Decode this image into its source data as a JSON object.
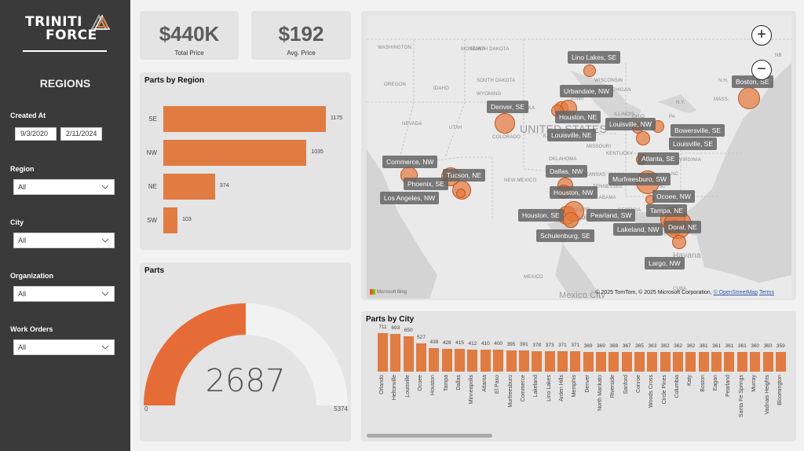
{
  "brand": {
    "line1": "TRINITI",
    "line2": "FORCE"
  },
  "sidebar": {
    "title": "REGIONS",
    "created_at": {
      "label": "Created At",
      "start": "9/3/2020",
      "end": "2/11/2024"
    },
    "filters": [
      {
        "label": "Region",
        "value": "All"
      },
      {
        "label": "City",
        "value": "All"
      },
      {
        "label": "Organization",
        "value": "All"
      },
      {
        "label": "Work Orders",
        "value": "All"
      }
    ]
  },
  "kpis": [
    {
      "value": "$440K",
      "label": "Total Price"
    },
    {
      "value": "$192",
      "label": "Avg. Price"
    }
  ],
  "accent_color": "#e07b42",
  "parts_by_region": {
    "title": "Parts by Region",
    "chart_data": {
      "type": "bar",
      "orientation": "horizontal",
      "title": "Parts by Region",
      "categories": [
        "SE",
        "NW",
        "NE",
        "SW"
      ],
      "values": [
        1175,
        1035,
        374,
        103
      ]
    }
  },
  "parts_gauge": {
    "title": "Parts",
    "value": "2687",
    "min": "0",
    "max": "5374",
    "fraction": 0.5
  },
  "map": {
    "zoom_in": "+",
    "zoom_out": "−",
    "bing_label": "Microsoft Bing",
    "attribution": "© 2025 TomTom, © 2025 Microsoft Corporation,",
    "osm_link": "© OpenStreetMap",
    "terms_link": "Terms",
    "geo_labels": [
      "WASHINGTON",
      "MONTANA",
      "NORTH DAKOTA",
      "OREGON",
      "IDAHO",
      "SOUTH DAKOTA",
      "WYOMING",
      "NEBRASKA",
      "NEVADA",
      "UTAH",
      "COLORADO",
      "UNITED STATES",
      "KANSAS",
      "MISSOURI",
      "WISCONSIN",
      "MICHIGAN",
      "IOWA",
      "ILLINOIS",
      "OHIO",
      "PA",
      "N.Y.",
      "MASS.",
      "N.H.",
      "NB",
      "KENTUCKY",
      "VIRGINIA",
      "NC",
      "SC",
      "TENNESSEE",
      "OKLAHOMA",
      "ARKANSAS",
      "ALABAMA",
      "MISSISSIPPI",
      "LOUISIANA",
      "GEORGIA",
      "TEXAS",
      "NEW MEXICO",
      "MEXICO",
      "Mexico City",
      "Havana",
      "CUBA"
    ],
    "locations": [
      {
        "label": "Lino Lakes, SE"
      },
      {
        "label": "Urbandale, NW"
      },
      {
        "label": "Denver, SE"
      },
      {
        "label": "Houston, NE"
      },
      {
        "label": "Louisville, NE"
      },
      {
        "label": "Boston, SE"
      },
      {
        "label": "Louisville, NW"
      },
      {
        "label": "Bowersville, SE"
      },
      {
        "label": "Louisville, SE"
      },
      {
        "label": "Atlanta, SE"
      },
      {
        "label": "Commerce, NW"
      },
      {
        "label": "Tucson, NE"
      },
      {
        "label": "Phoenix, SE"
      },
      {
        "label": "Los Angeles, NW"
      },
      {
        "label": "Dallas, NW"
      },
      {
        "label": "Murfreesburo, SW"
      },
      {
        "label": "Houston, NW"
      },
      {
        "label": "Ocoee, NW"
      },
      {
        "label": "Houston, SE"
      },
      {
        "label": "Pearland, SW"
      },
      {
        "label": "Tampa, NE"
      },
      {
        "label": "Lakeland, NW"
      },
      {
        "label": "Doral, NE"
      },
      {
        "label": "Schulenburg, SE"
      },
      {
        "label": "Largo, NW"
      }
    ]
  },
  "parts_by_city": {
    "title": "Parts by City",
    "chart_data": {
      "type": "bar",
      "title": "Parts by City",
      "categories": [
        "Orlando",
        "Heltonville",
        "Louisville",
        "Ocoee",
        "Houston",
        "Tampa",
        "Dallas",
        "Minneapolis",
        "Atlanta",
        "El Paso",
        "Murfreesburo",
        "Commerce",
        "Lakeland",
        "Lino Lakes",
        "Arden Hills",
        "Memphis",
        "Denver",
        "North Mankato",
        "Riverside",
        "Sanford",
        "Conroe",
        "Woods Cross",
        "Circle Pines",
        "Columbia",
        "Katy",
        "Boston",
        "Eagan",
        "Pearland",
        "Santa Fe Springs",
        "Murray",
        "Vadnais Heights",
        "Bloomington"
      ],
      "values": [
        711,
        693,
        650,
        527,
        439,
        428,
        415,
        412,
        410,
        400,
        395,
        391,
        378,
        373,
        371,
        371,
        369,
        369,
        369,
        367,
        365,
        363,
        362,
        362,
        362,
        361,
        361,
        361,
        361,
        360,
        360,
        359
      ]
    }
  }
}
